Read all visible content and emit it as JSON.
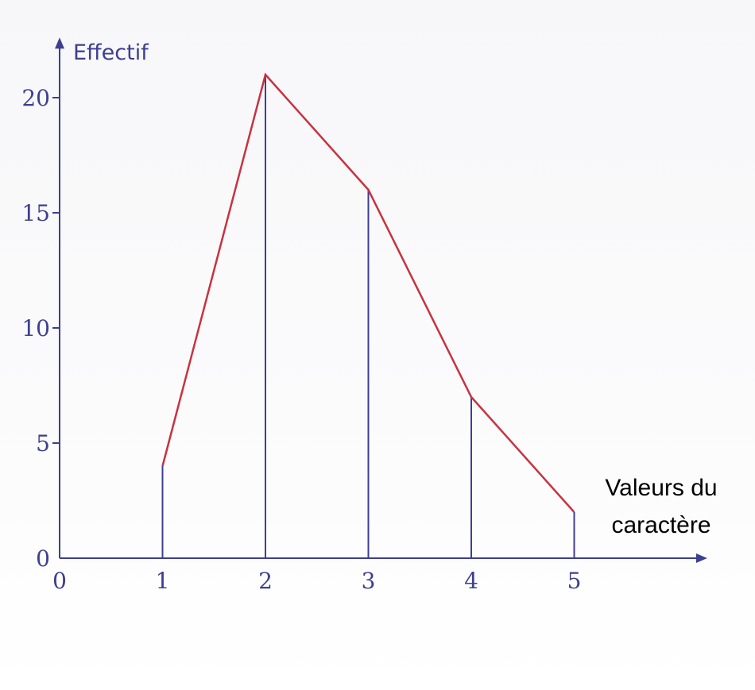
{
  "chart_data": {
    "type": "line",
    "ylabel": "Effectif",
    "xlabel": [
      "Valeurs du",
      "caractère"
    ],
    "x": [
      1,
      2,
      3,
      4,
      5
    ],
    "values": [
      4,
      21,
      16,
      7,
      2
    ],
    "x_ticks": [
      0,
      1,
      2,
      3,
      4,
      5
    ],
    "y_ticks": [
      0,
      5,
      10,
      15,
      20
    ],
    "xlim": [
      0,
      6.2
    ],
    "ylim": [
      0,
      22.2
    ],
    "grid": false,
    "colors": {
      "axis": "#3d3f8f",
      "polygon": "#c8323f",
      "stems": "#3d3f8f"
    }
  }
}
